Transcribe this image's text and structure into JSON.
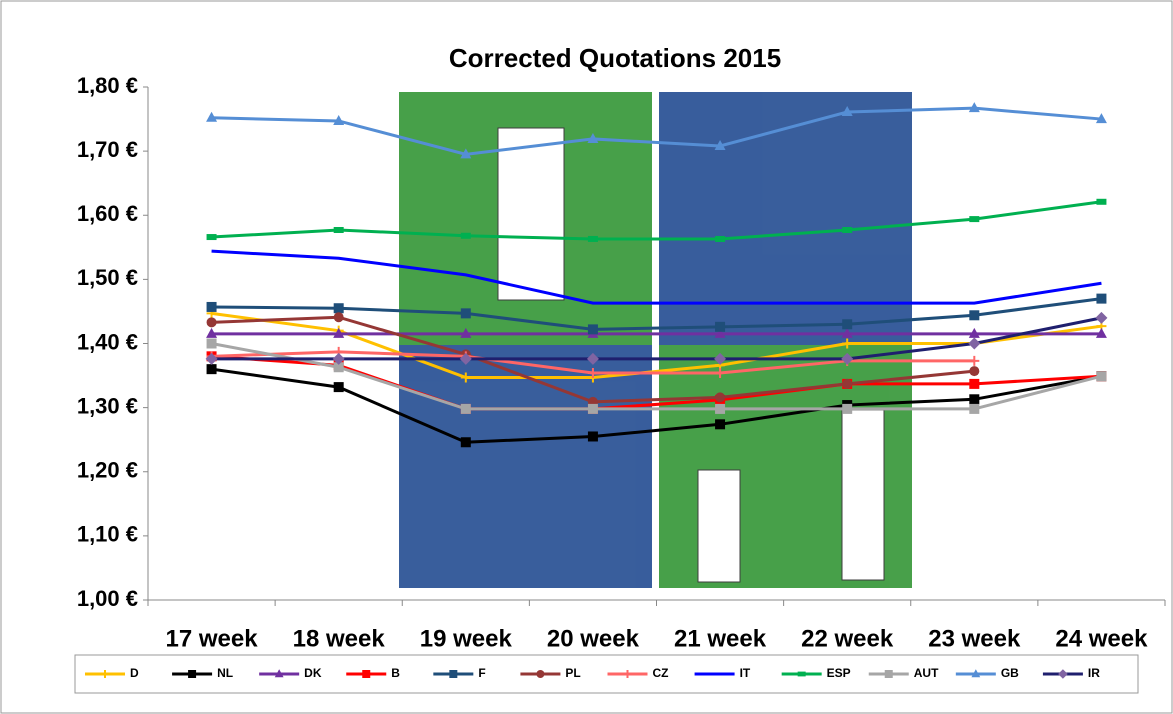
{
  "chart_data": {
    "type": "line",
    "title": "Corrected Quotations 2015",
    "categories": [
      "17 week",
      "18 week",
      "19 week",
      "20 week",
      "21 week",
      "22 week",
      "23 week",
      "24 week"
    ],
    "series": [
      {
        "name": "D",
        "color": "#FFC000",
        "marker": "plus",
        "values": [
          1.447,
          1.42,
          1.347,
          1.347,
          1.366,
          1.4,
          1.4,
          1.427
        ]
      },
      {
        "name": "NL",
        "color": "#000000",
        "marker": "square",
        "values": [
          1.36,
          1.332,
          1.246,
          1.255,
          1.274,
          1.304,
          1.313,
          1.349
        ]
      },
      {
        "name": "DK",
        "color": "#7030A0",
        "marker": "triangle",
        "values": [
          1.415,
          1.415,
          1.415,
          1.415,
          1.415,
          1.415,
          1.415,
          1.415
        ]
      },
      {
        "name": "B",
        "color": "#FF0000",
        "marker": "square",
        "values": [
          1.38,
          1.366,
          1.298,
          1.298,
          1.312,
          1.337,
          1.337,
          1.349
        ]
      },
      {
        "name": "F",
        "color": "#1F4E79",
        "marker": "square",
        "values": [
          1.457,
          1.455,
          1.447,
          1.422,
          1.426,
          1.43,
          1.444,
          1.47
        ]
      },
      {
        "name": "PL",
        "color": "#953735",
        "marker": "circle",
        "values": [
          1.433,
          1.441,
          1.383,
          1.309,
          1.316,
          1.337,
          1.357,
          null
        ]
      },
      {
        "name": "CZ",
        "color": "#FF6666",
        "marker": "plus",
        "values": [
          1.38,
          1.387,
          1.38,
          1.354,
          1.354,
          1.373,
          1.373,
          null
        ]
      },
      {
        "name": "IT",
        "color": "#0000FF",
        "marker": "none",
        "values": [
          1.544,
          1.533,
          1.507,
          1.463,
          1.463,
          1.463,
          1.463,
          1.494
        ]
      },
      {
        "name": "ESP",
        "color": "#00B050",
        "marker": "dash",
        "values": [
          1.566,
          1.577,
          1.568,
          1.563,
          1.563,
          1.577,
          1.594,
          1.621
        ]
      },
      {
        "name": "AUT",
        "color": "#A6A6A6",
        "marker": "square",
        "values": [
          1.4,
          1.363,
          1.298,
          1.298,
          1.298,
          1.298,
          1.298,
          1.349
        ]
      },
      {
        "name": "GB",
        "color": "#558ED5",
        "marker": "triangle",
        "values": [
          1.752,
          1.747,
          1.695,
          1.719,
          1.708,
          1.761,
          1.767,
          1.75
        ]
      },
      {
        "name": "IR",
        "color": "#1F1F6E",
        "marker": "diamond",
        "values": [
          1.376,
          1.376,
          1.376,
          1.376,
          1.376,
          1.376,
          1.4,
          1.44
        ]
      }
    ],
    "ylim": [
      1.0,
      1.8
    ],
    "yticks": [
      {
        "value": 1.0,
        "label": "1,00 €"
      },
      {
        "value": 1.1,
        "label": "1,10 €"
      },
      {
        "value": 1.2,
        "label": "1,20 €"
      },
      {
        "value": 1.3,
        "label": "1,30 €"
      },
      {
        "value": 1.4,
        "label": "1,40 €"
      },
      {
        "value": 1.5,
        "label": "1,50 €"
      },
      {
        "value": 1.6,
        "label": "1,60 €"
      },
      {
        "value": 1.7,
        "label": "1,70 €"
      },
      {
        "value": 1.8,
        "label": "1,80 €"
      }
    ],
    "grid": false,
    "legend": "bottom"
  }
}
